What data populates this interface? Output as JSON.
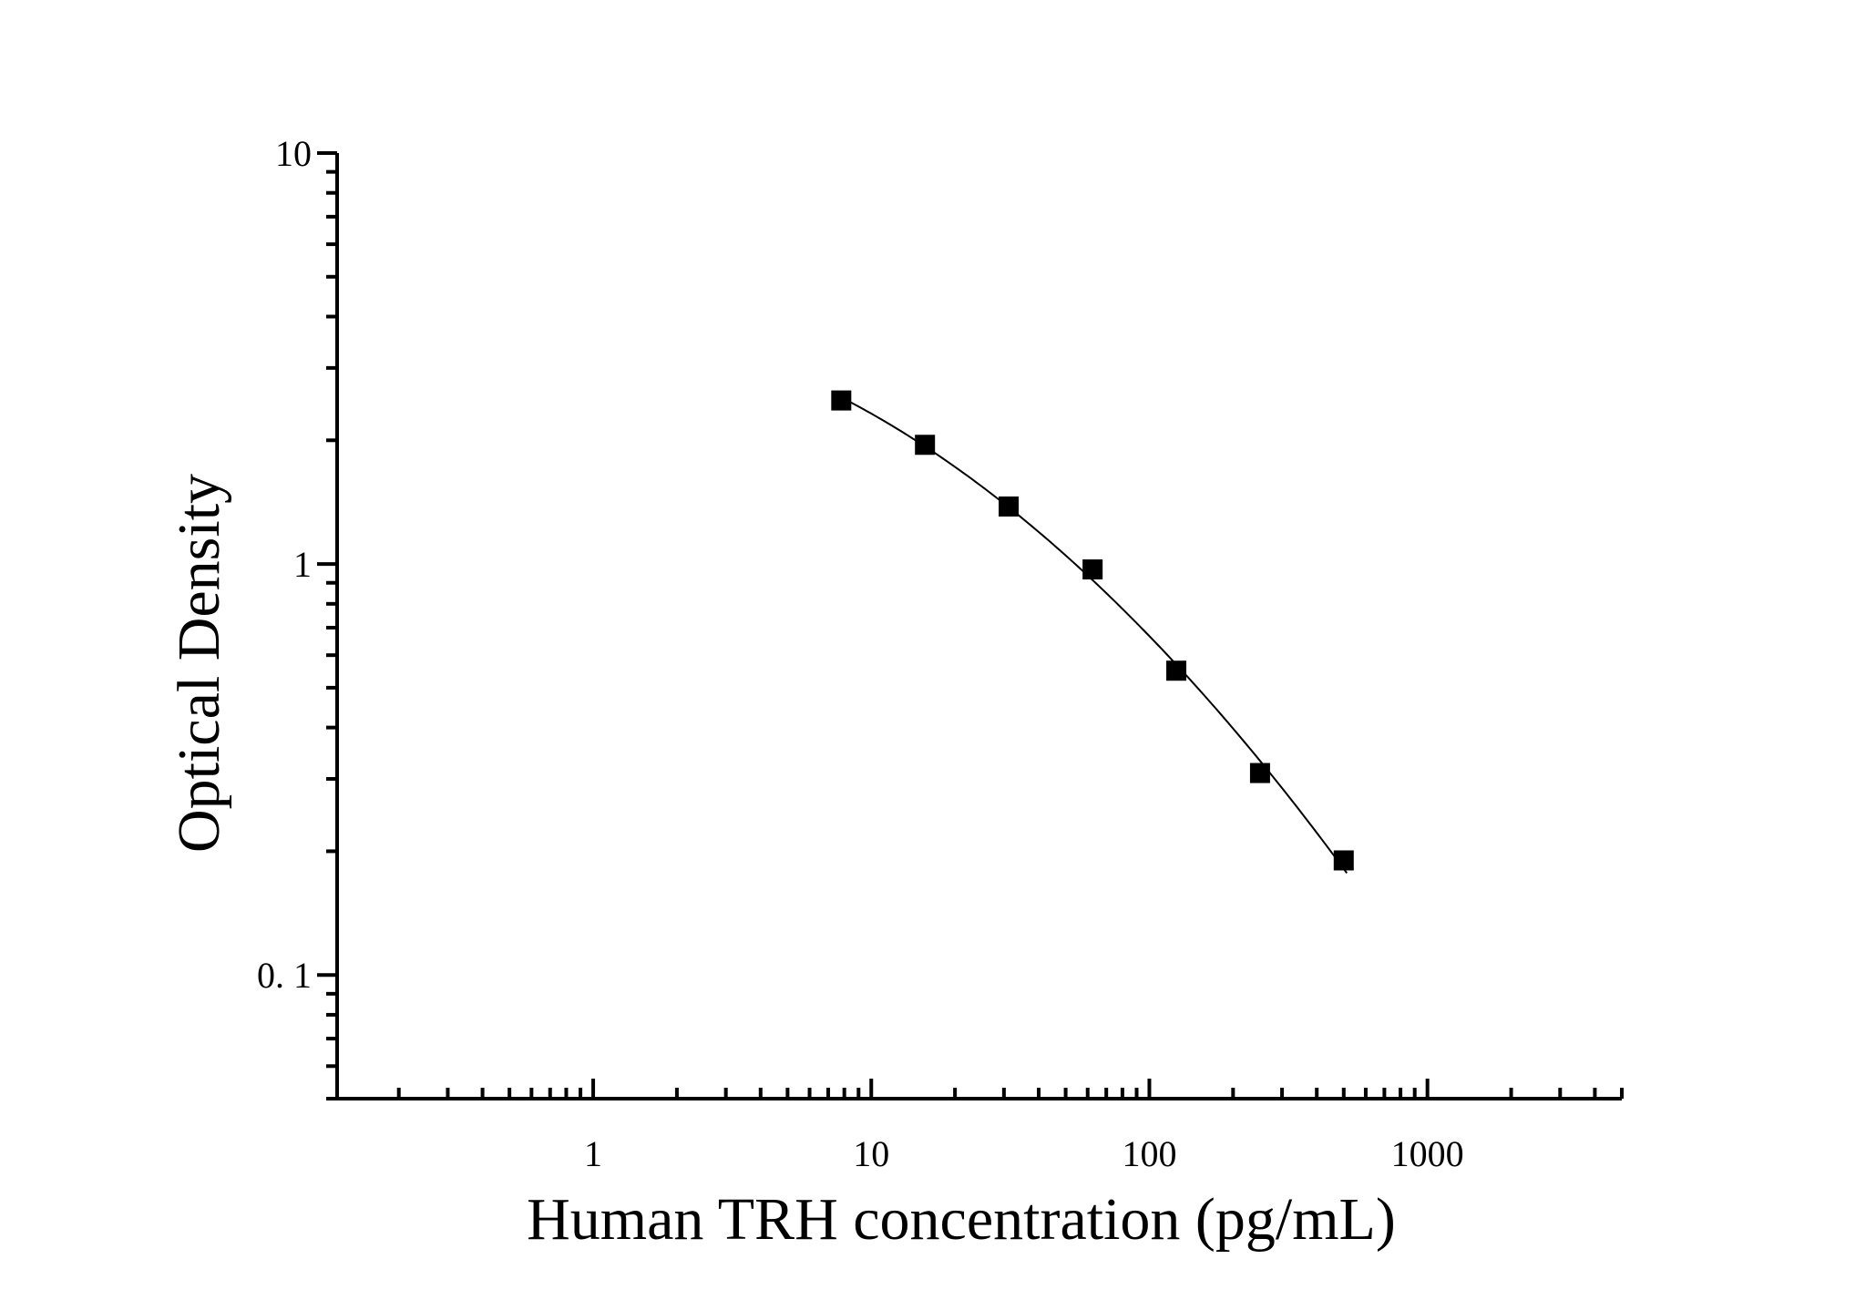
{
  "chart_data": {
    "type": "scatter",
    "title": "",
    "xlabel": "Human TRH concentration (pg/mL)",
    "ylabel": "Optical Density",
    "x_scale": "log",
    "y_scale": "log",
    "xlim": [
      0.12,
      5000
    ],
    "ylim": [
      0.05,
      10
    ],
    "x_ticks": [
      {
        "value": 1,
        "label": "1"
      },
      {
        "value": 10,
        "label": "10"
      },
      {
        "value": 100,
        "label": "100"
      },
      {
        "value": 1000,
        "label": "1000"
      }
    ],
    "y_ticks": [
      {
        "value": 10,
        "label": "10"
      },
      {
        "value": 1,
        "label": "1"
      },
      {
        "value": 0.1,
        "label": "0. 1"
      }
    ],
    "grid": false,
    "legend": "none",
    "series": [
      {
        "name": "",
        "marker": "square",
        "color": "#000000",
        "x": [
          7.8,
          15.6,
          31.2,
          62.5,
          125,
          250,
          500
        ],
        "y": [
          2.5,
          1.95,
          1.38,
          0.97,
          0.55,
          0.31,
          0.19
        ]
      }
    ],
    "fit_curve": {
      "color": "#000000",
      "x_range": [
        7.8,
        490
      ]
    }
  }
}
